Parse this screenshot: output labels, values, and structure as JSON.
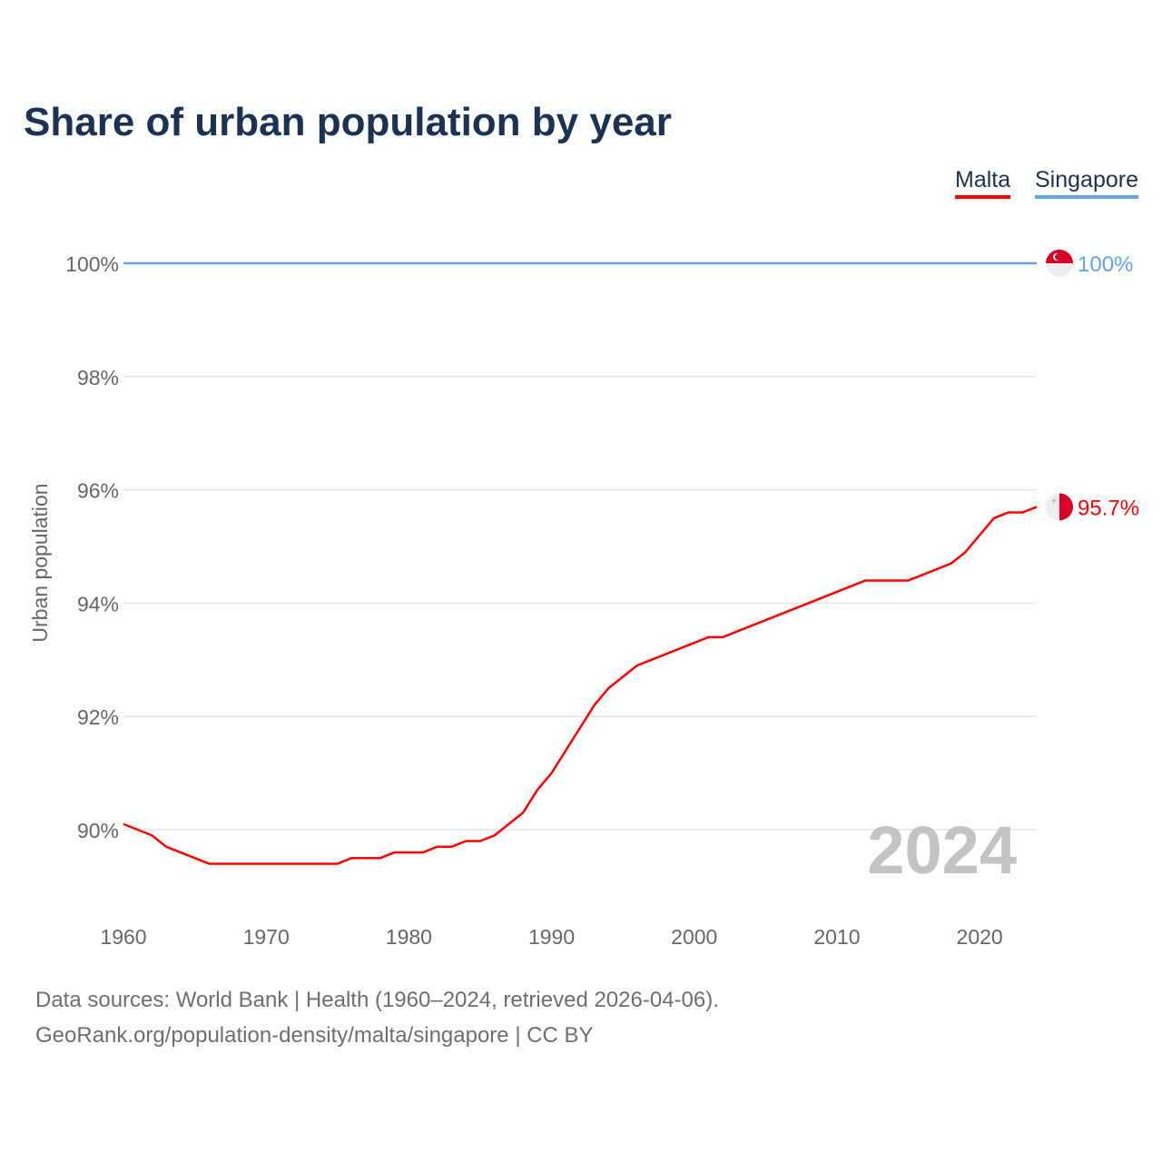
{
  "chart_data": {
    "type": "line",
    "title": "Share of urban population by year",
    "xlabel": "",
    "ylabel": "Urban population",
    "xlim": [
      1960,
      2024
    ],
    "ylim": [
      88.5,
      100.5
    ],
    "x_ticks": [
      1960,
      1970,
      1980,
      1990,
      2000,
      2010,
      2020
    ],
    "x_tick_labels": [
      "1960",
      "1970",
      "1980",
      "1990",
      "2000",
      "2010",
      "2020"
    ],
    "y_ticks": [
      90,
      92,
      94,
      96,
      98,
      100
    ],
    "y_tick_labels": [
      "90%",
      "92%",
      "94%",
      "96%",
      "98%",
      "100%"
    ],
    "grid": true,
    "legend_placement": "top-right",
    "year_watermark": "2024",
    "series": [
      {
        "name": "Malta",
        "color": "#ff0000",
        "end_label": "95.7%",
        "points": [
          [
            1960,
            90.1
          ],
          [
            1962,
            89.9
          ],
          [
            1963,
            89.7
          ],
          [
            1966,
            89.4
          ],
          [
            1975,
            89.4
          ],
          [
            1976,
            89.5
          ],
          [
            1978,
            89.5
          ],
          [
            1979,
            89.6
          ],
          [
            1981,
            89.6
          ],
          [
            1982,
            89.7
          ],
          [
            1983,
            89.7
          ],
          [
            1984,
            89.8
          ],
          [
            1985,
            89.8
          ],
          [
            1986,
            89.9
          ],
          [
            1988,
            90.3
          ],
          [
            1989,
            90.7
          ],
          [
            1990,
            91.0
          ],
          [
            1993,
            92.2
          ],
          [
            1994,
            92.5
          ],
          [
            1996,
            92.9
          ],
          [
            2001,
            93.4
          ],
          [
            2002,
            93.4
          ],
          [
            2012,
            94.4
          ],
          [
            2015,
            94.4
          ],
          [
            2018,
            94.7
          ],
          [
            2019,
            94.9
          ],
          [
            2021,
            95.5
          ],
          [
            2022,
            95.6
          ],
          [
            2023,
            95.6
          ],
          [
            2024,
            95.7
          ]
        ]
      },
      {
        "name": "Singapore",
        "color": "#62a4e6",
        "end_label": "100%",
        "points": [
          [
            1960,
            100
          ],
          [
            2024,
            100
          ]
        ]
      }
    ]
  },
  "footer": {
    "line1": "Data sources: World Bank | Health (1960–2024, retrieved 2026-04-06).",
    "line2": "GeoRank.org/population-density/malta/singapore | CC BY"
  }
}
